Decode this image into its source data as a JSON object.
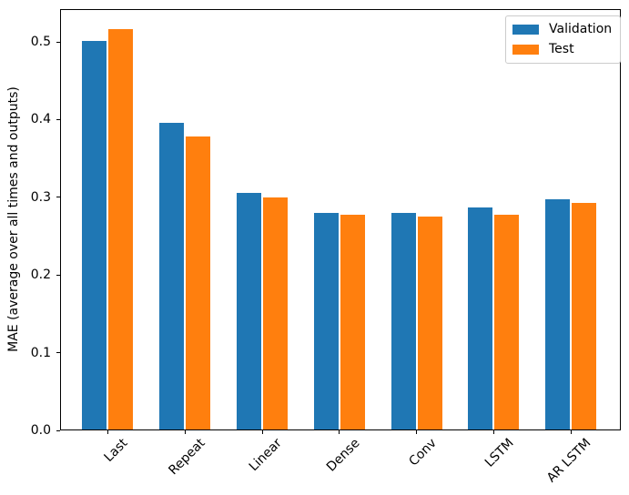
{
  "figure": {
    "background": "#ffffff",
    "axis_color": "#000000",
    "text_color": "#000000",
    "legend_border_color": "#cccccc"
  },
  "chart_data": {
    "type": "bar",
    "categories": [
      "Last",
      "Repeat",
      "Linear",
      "Dense",
      "Conv",
      "LSTM",
      "AR LSTM"
    ],
    "series": [
      {
        "name": "Validation",
        "color": "#1f77b4",
        "values": [
          0.501,
          0.396,
          0.306,
          0.28,
          0.28,
          0.287,
          0.298
        ]
      },
      {
        "name": "Test",
        "color": "#ff7f0e",
        "values": [
          0.516,
          0.378,
          0.3,
          0.277,
          0.275,
          0.277,
          0.293
        ]
      }
    ],
    "title": "",
    "xlabel": "",
    "ylabel": "MAE (average over all times and outputs)",
    "ylim": [
      0,
      0.5415
    ],
    "yticks": [
      0.0,
      0.1,
      0.2,
      0.3,
      0.4,
      0.5
    ],
    "ytick_labels": [
      "0.0",
      "0.1",
      "0.2",
      "0.3",
      "0.4",
      "0.5"
    ],
    "xtick_rotation": 45,
    "grid": false,
    "legend": {
      "position": "upper right",
      "entries": [
        "Validation",
        "Test"
      ]
    }
  }
}
